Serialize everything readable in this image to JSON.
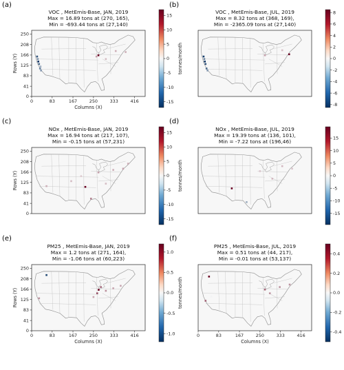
{
  "panel_labels": [
    "(a)",
    "(b)",
    "(c)",
    "(d)",
    "(e)",
    "(f)"
  ],
  "chart_data": [
    {
      "type": "heatmap",
      "title_lines": [
        "VOC , MetEmis-Base, JAN, 2019",
        "Max  =  16.89 tons at (270, 165),",
        "Min = -693.44 tons at (27,140)"
      ],
      "xlabel": "Columns (X)",
      "ylabel": "Rows (Y)",
      "cbar_label": "tonnes/month",
      "xticks": [
        0,
        83,
        167,
        250,
        333,
        416
      ],
      "yticks": [
        0,
        41,
        83,
        125,
        166,
        208,
        250
      ],
      "xlim": [
        0,
        459
      ],
      "ylim": [
        0,
        265
      ],
      "cbar_ticks": [
        -15,
        -10,
        -5,
        0,
        5,
        10,
        15
      ],
      "cbar_range": [
        -17,
        17
      ],
      "points": [
        {
          "x": 27,
          "y": 140,
          "v": -693.44
        },
        {
          "x": 22,
          "y": 160,
          "v": -14
        },
        {
          "x": 30,
          "y": 130,
          "v": -12
        },
        {
          "x": 34,
          "y": 112,
          "v": -10
        },
        {
          "x": 25,
          "y": 150,
          "v": -9
        },
        {
          "x": 38,
          "y": 104,
          "v": -8
        },
        {
          "x": 36,
          "y": 120,
          "v": -6
        },
        {
          "x": 270,
          "y": 165,
          "v": 16.89
        },
        {
          "x": 262,
          "y": 160,
          "v": 6
        },
        {
          "x": 340,
          "y": 182,
          "v": 5
        },
        {
          "x": 300,
          "y": 150,
          "v": 4
        },
        {
          "x": 380,
          "y": 178,
          "v": 5
        }
      ]
    },
    {
      "type": "heatmap",
      "title_lines": [
        "VOC , MetEmis-Base, JUL, 2019",
        "Max  =  8.32 tons at (368, 169),",
        "Min = -2365.09 tons at (27,140)"
      ],
      "xlabel": "",
      "ylabel": "",
      "cbar_label": "tonnes/month",
      "xticks": [],
      "yticks": [],
      "xlim": [
        0,
        459
      ],
      "ylim": [
        0,
        265
      ],
      "cbar_ticks": [
        -8,
        -6,
        -4,
        -2,
        0,
        2,
        4,
        6,
        8
      ],
      "cbar_range": [
        -8.5,
        8.5
      ],
      "points": [
        {
          "x": 27,
          "y": 140,
          "v": -2365.09
        },
        {
          "x": 22,
          "y": 160,
          "v": -8
        },
        {
          "x": 30,
          "y": 130,
          "v": -7
        },
        {
          "x": 34,
          "y": 112,
          "v": -6
        },
        {
          "x": 25,
          "y": 150,
          "v": -5
        },
        {
          "x": 38,
          "y": 104,
          "v": -4
        },
        {
          "x": 368,
          "y": 169,
          "v": 8.32
        },
        {
          "x": 270,
          "y": 165,
          "v": 3
        },
        {
          "x": 340,
          "y": 185,
          "v": 2
        }
      ]
    },
    {
      "type": "heatmap",
      "title_lines": [
        "NOx , MetEmis-Base, JAN, 2019",
        "Max  =  16.94 tons at (217, 107),",
        "Min = -0.15 tons at (57,231)"
      ],
      "xlabel": "",
      "ylabel": "Rows (Y)",
      "cbar_label": "tonnes/month",
      "xticks": [],
      "yticks": [
        0,
        41,
        83,
        125,
        166,
        208,
        250
      ],
      "xlim": [
        0,
        459
      ],
      "ylim": [
        0,
        265
      ],
      "cbar_ticks": [
        -15,
        -10,
        -5,
        0,
        5,
        10,
        15
      ],
      "cbar_range": [
        -17,
        17
      ],
      "points": [
        {
          "x": 217,
          "y": 107,
          "v": 16.94
        },
        {
          "x": 57,
          "y": 231,
          "v": -0.15
        },
        {
          "x": 270,
          "y": 165,
          "v": 6
        },
        {
          "x": 330,
          "y": 175,
          "v": 5
        },
        {
          "x": 370,
          "y": 180,
          "v": 6
        },
        {
          "x": 240,
          "y": 60,
          "v": 8
        },
        {
          "x": 60,
          "y": 110,
          "v": 5
        },
        {
          "x": 300,
          "y": 120,
          "v": 4
        },
        {
          "x": 160,
          "y": 130,
          "v": 4
        },
        {
          "x": 200,
          "y": 150,
          "v": 3
        },
        {
          "x": 390,
          "y": 200,
          "v": 5
        }
      ]
    },
    {
      "type": "heatmap",
      "title_lines": [
        "NOx , MetEmis-Base, JUL, 2019",
        "Max  =  19.39 tons at (136, 101),",
        "Min = -7.22 tons at (196,46)"
      ],
      "xlabel": "",
      "ylabel": "",
      "cbar_label": "tonnes/month",
      "xticks": [],
      "yticks": [],
      "xlim": [
        0,
        459
      ],
      "ylim": [
        0,
        265
      ],
      "cbar_ticks": [
        -15,
        -10,
        -5,
        0,
        5,
        10,
        15
      ],
      "cbar_range": [
        -19.5,
        19.5
      ],
      "points": [
        {
          "x": 136,
          "y": 101,
          "v": 19.39
        },
        {
          "x": 196,
          "y": 46,
          "v": -7.22
        },
        {
          "x": 300,
          "y": 140,
          "v": 5
        },
        {
          "x": 250,
          "y": 170,
          "v": 4
        },
        {
          "x": 340,
          "y": 190,
          "v": 5
        },
        {
          "x": 380,
          "y": 180,
          "v": 4
        }
      ]
    },
    {
      "type": "heatmap",
      "title_lines": [
        "PM25 , MetEmis-Base, JAN, 2019",
        "Max  =  1.2 tons at (271, 164),",
        "Min = -1.06 tons at (60,223)"
      ],
      "xlabel": "Columns (X)",
      "ylabel": "Rows (Y)",
      "cbar_label": "tonnes/month",
      "xticks": [
        0,
        83,
        167,
        250,
        333,
        416
      ],
      "yticks": [
        0,
        41,
        83,
        125,
        166,
        208,
        250
      ],
      "xlim": [
        0,
        459
      ],
      "ylim": [
        0,
        265
      ],
      "cbar_ticks": [
        -1.0,
        -0.5,
        0.0,
        0.5,
        1.0
      ],
      "cbar_range": [
        -1.2,
        1.2
      ],
      "points": [
        {
          "x": 271,
          "y": 164,
          "v": 1.2
        },
        {
          "x": 60,
          "y": 223,
          "v": -1.06
        },
        {
          "x": 265,
          "y": 150,
          "v": 0.8
        },
        {
          "x": 280,
          "y": 175,
          "v": 0.7
        },
        {
          "x": 300,
          "y": 160,
          "v": 0.5
        },
        {
          "x": 330,
          "y": 170,
          "v": 0.4
        },
        {
          "x": 360,
          "y": 180,
          "v": 0.4
        },
        {
          "x": 30,
          "y": 130,
          "v": 0.5
        },
        {
          "x": 250,
          "y": 135,
          "v": 0.4
        }
      ]
    },
    {
      "type": "heatmap",
      "title_lines": [
        "PM25 , MetEmis-Base, JUL, 2019",
        "Max  =  0.51 tons at (44, 217),",
        "Min = -0.01 tons at (53,137)"
      ],
      "xlabel": "Columns (X)",
      "ylabel": "",
      "cbar_label": "tonnes/month",
      "xticks": [
        0,
        83,
        167,
        250,
        333,
        416
      ],
      "yticks": [],
      "xlim": [
        0,
        459
      ],
      "ylim": [
        0,
        265
      ],
      "cbar_ticks": [
        -0.4,
        -0.2,
        0.0,
        0.2,
        0.4
      ],
      "cbar_range": [
        -0.5,
        0.5
      ],
      "points": [
        {
          "x": 44,
          "y": 217,
          "v": 0.51
        },
        {
          "x": 53,
          "y": 137,
          "v": -0.01
        },
        {
          "x": 270,
          "y": 165,
          "v": 0.3
        },
        {
          "x": 290,
          "y": 150,
          "v": 0.2
        },
        {
          "x": 330,
          "y": 175,
          "v": 0.2
        },
        {
          "x": 30,
          "y": 120,
          "v": 0.3
        },
        {
          "x": 370,
          "y": 185,
          "v": 0.2
        }
      ]
    }
  ]
}
